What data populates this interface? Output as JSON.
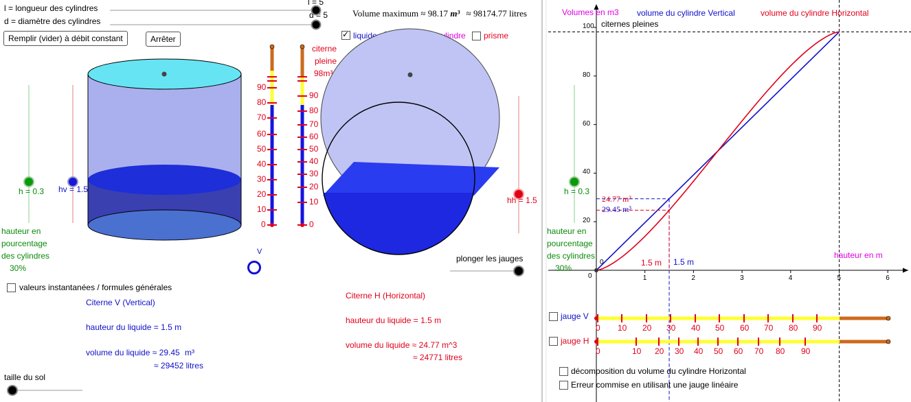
{
  "colors": {
    "accent_blue": "#1010c8",
    "accent_red": "#e0001a",
    "green": "#0a8a0a",
    "magenta": "#e000e0",
    "gauge_yellow": "#ffff33",
    "gauge_brown": "#cc6a1c"
  },
  "sliders": {
    "l_label": "l = longueur des cylindres",
    "l_value": "l = 5",
    "d_label": "d = diamètre des cylindres",
    "d_value": "d = 5",
    "taille_sol": "taille du sol",
    "plonger": "plonger les jauges"
  },
  "buttons": {
    "fill": "Remplir (vider) à débit constant",
    "stop": "Arrêter"
  },
  "volume_max": {
    "label": "Volume maximum ≈ 98.17",
    "unit": "m³",
    "litres": "≈ 98174.77 litres"
  },
  "view_options": {
    "liquide": "liquide",
    "fraction": "fraction de cylindre",
    "prisme": "prisme"
  },
  "citerne_pleine": {
    "line1": "citerne",
    "line2": "pleine",
    "line3": "98m³"
  },
  "gauge_left_ticks": [
    "90",
    "80",
    "70",
    "60",
    "50",
    "40",
    "30",
    "20",
    "10",
    "0"
  ],
  "gauge_right_ticks": [
    "90",
    "80",
    "70",
    "60",
    "50",
    "40",
    "30",
    "20",
    "10",
    "0"
  ],
  "left_panel": {
    "h_value": "h = 0.3",
    "hv_value": "hv = 1.5",
    "hh_value": "hh = 1.5",
    "hauteur1": "hauteur en",
    "hauteur2": "pourcentage",
    "hauteur3": "des cylindres",
    "pct": "30%",
    "v_label": "V",
    "valeurs_cb": "valeurs instantanées / formules générales"
  },
  "citerne_v": {
    "title": "Citerne V (Vertical)",
    "hauteur": "hauteur du liquide  =  1.5 m",
    "volume": "volume du liquide ≈ 29.45",
    "unit": "m³",
    "litres": "≈ 29452  litres"
  },
  "citerne_h": {
    "title": "Citerne H (Horizontal)",
    "hauteur": "hauteur du liquide   =   1.5 m",
    "volume": "volume du liquide ≈ 24.77 m^3",
    "litres": "≈ 24771  litres"
  },
  "graph": {
    "volumes_label": "Volumes en m3",
    "vertical_label": "volume du cylindre Vertical",
    "horizontal_label": "volume du cylindre Horizontal",
    "citernes_pleines": "citernes pleines",
    "hauteur_m": "hauteur en m",
    "val_h": "24.77 m³",
    "val_v": "29.45 m³",
    "x_h": "1.5 m",
    "x_v": "1.5 m",
    "h_value": "h = 0.3",
    "hauteur1": "hauteur en",
    "hauteur2": "pourcentage",
    "hauteur3": "des cylindres",
    "pct": "30%",
    "origin": "0",
    "origin_o": "0",
    "x_ticks": [
      "1",
      "2",
      "3",
      "4",
      "5",
      "6"
    ],
    "y_ticks": [
      "20",
      "40",
      "60",
      "80",
      "100"
    ],
    "jauge_v": "jauge V",
    "jauge_h": "jauge H",
    "jauge_v_ticks": [
      "0",
      "10",
      "20",
      "30",
      "40",
      "50",
      "60",
      "70",
      "80",
      "90"
    ],
    "jauge_h_ticks": [
      "0",
      "10",
      "20",
      "30",
      "40",
      "50",
      "60",
      "70",
      "80",
      "90"
    ],
    "decomp": "décomposition du volume du cylindre Horizontal",
    "erreur": "Erreur commise en utilisant une jauge linéaire"
  },
  "chart_data": {
    "type": "line",
    "xlabel": "hauteur en m",
    "ylabel": "Volumes en m3",
    "xlim": [
      0,
      6
    ],
    "ylim": [
      0,
      100
    ],
    "series": [
      {
        "name": "volume du cylindre Vertical",
        "x": [
          0,
          5
        ],
        "y": [
          0,
          98.17
        ]
      },
      {
        "name": "volume du cylindre Horizontal",
        "x": [
          0,
          0.5,
          1,
          1.5,
          2,
          2.5,
          3,
          3.5,
          4,
          4.5,
          5
        ],
        "y": [
          0,
          5.1,
          14.1,
          24.77,
          36.3,
          49.1,
          61.9,
          73.4,
          84.1,
          93.1,
          98.17
        ]
      }
    ],
    "annotations": [
      "citernes pleines",
      "24.77 m³",
      "29.45 m³",
      "1.5 m",
      "1.5 m"
    ]
  }
}
